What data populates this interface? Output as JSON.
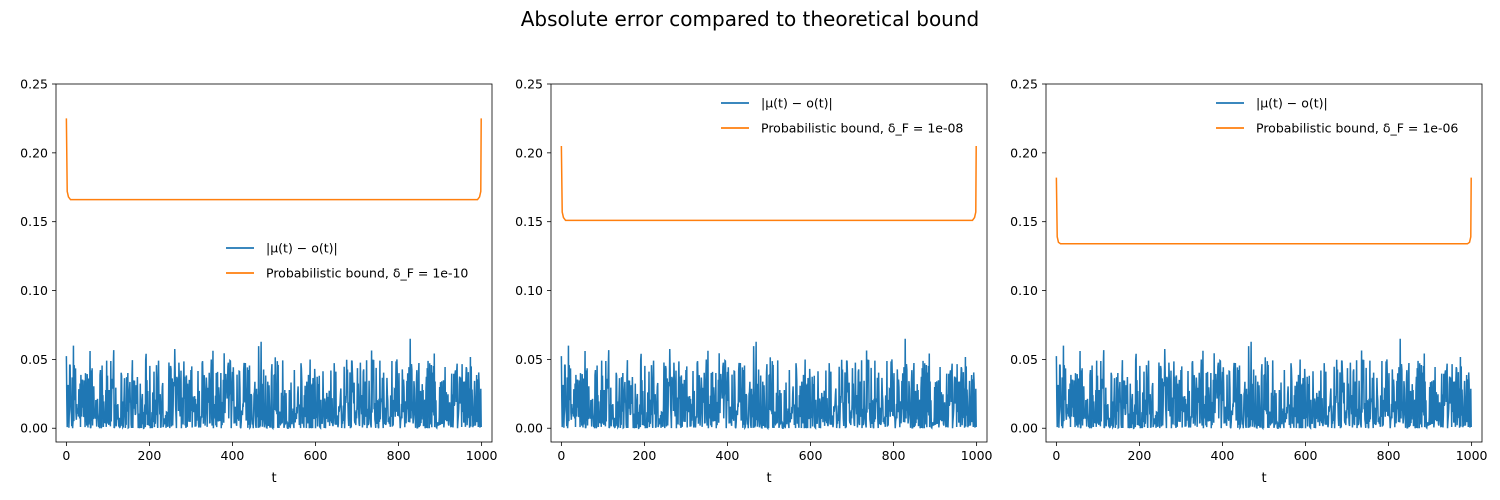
{
  "figure": {
    "title": "Absolute error compared to theoretical bound"
  },
  "colors": {
    "error": "#1f77b4",
    "bound": "#ff7f0e"
  },
  "chart_data": [
    {
      "type": "line",
      "title": "",
      "xlabel": "t",
      "ylabel": "",
      "xlim": [
        -25,
        1025
      ],
      "ylim": [
        -0.01,
        0.25
      ],
      "xticks": [
        0,
        200,
        400,
        600,
        800,
        1000
      ],
      "yticks": [
        0.0,
        0.05,
        0.1,
        0.15,
        0.2,
        0.25
      ],
      "xtick_labels": [
        "0",
        "200",
        "400",
        "600",
        "800",
        "1000"
      ],
      "ytick_labels": [
        "0.00",
        "0.05",
        "0.10",
        "0.15",
        "0.20",
        "0.25"
      ],
      "legend": {
        "placement": "center-right",
        "entries": [
          "|μ(t) − o(t)|",
          "Probabilistic bound, δ_F = 1e-10"
        ]
      },
      "series": [
        {
          "name": "|μ(t) − o(t)|",
          "color": "#1f77b4",
          "mean": 0.015,
          "max": 0.067,
          "min": 0.0,
          "x_range": [
            0,
            999
          ]
        },
        {
          "name": "Probabilistic bound, δ_F = 1e-10",
          "color": "#ff7f0e",
          "x": [
            0,
            2,
            5,
            10,
            500,
            990,
            995,
            998,
            999
          ],
          "values": [
            0.225,
            0.172,
            0.168,
            0.166,
            0.166,
            0.166,
            0.168,
            0.172,
            0.225
          ]
        }
      ]
    },
    {
      "type": "line",
      "title": "",
      "xlabel": "t",
      "ylabel": "",
      "xlim": [
        -25,
        1025
      ],
      "ylim": [
        -0.01,
        0.25
      ],
      "xticks": [
        0,
        200,
        400,
        600,
        800,
        1000
      ],
      "yticks": [
        0.0,
        0.05,
        0.1,
        0.15,
        0.2,
        0.25
      ],
      "xtick_labels": [
        "0",
        "200",
        "400",
        "600",
        "800",
        "1000"
      ],
      "ytick_labels": [
        "0.00",
        "0.05",
        "0.10",
        "0.15",
        "0.20",
        "0.25"
      ],
      "legend": {
        "placement": "upper-right",
        "entries": [
          "|μ(t) − o(t)|",
          "Probabilistic bound, δ_F = 1e-08"
        ]
      },
      "series": [
        {
          "name": "|μ(t) − o(t)|",
          "color": "#1f77b4",
          "mean": 0.015,
          "max": 0.067,
          "min": 0.0,
          "x_range": [
            0,
            999
          ]
        },
        {
          "name": "Probabilistic bound, δ_F = 1e-08",
          "color": "#ff7f0e",
          "x": [
            0,
            2,
            5,
            10,
            500,
            990,
            995,
            998,
            999
          ],
          "values": [
            0.205,
            0.157,
            0.153,
            0.151,
            0.151,
            0.151,
            0.153,
            0.157,
            0.205
          ]
        }
      ]
    },
    {
      "type": "line",
      "title": "",
      "xlabel": "t",
      "ylabel": "",
      "xlim": [
        -25,
        1025
      ],
      "ylim": [
        -0.01,
        0.25
      ],
      "xticks": [
        0,
        200,
        400,
        600,
        800,
        1000
      ],
      "yticks": [
        0.0,
        0.05,
        0.1,
        0.15,
        0.2,
        0.25
      ],
      "xtick_labels": [
        "0",
        "200",
        "400",
        "600",
        "800",
        "1000"
      ],
      "ytick_labels": [
        "0.00",
        "0.05",
        "0.10",
        "0.15",
        "0.20",
        "0.25"
      ],
      "legend": {
        "placement": "upper-right",
        "entries": [
          "|μ(t) − o(t)|",
          "Probabilistic bound, δ_F = 1e-06"
        ]
      },
      "series": [
        {
          "name": "|μ(t) − o(t)|",
          "color": "#1f77b4",
          "mean": 0.015,
          "max": 0.067,
          "min": 0.0,
          "x_range": [
            0,
            999
          ]
        },
        {
          "name": "Probabilistic bound, δ_F = 1e-06",
          "color": "#ff7f0e",
          "x": [
            0,
            2,
            5,
            10,
            500,
            990,
            995,
            998,
            999
          ],
          "values": [
            0.182,
            0.139,
            0.135,
            0.134,
            0.134,
            0.134,
            0.135,
            0.139,
            0.182
          ]
        }
      ]
    }
  ]
}
